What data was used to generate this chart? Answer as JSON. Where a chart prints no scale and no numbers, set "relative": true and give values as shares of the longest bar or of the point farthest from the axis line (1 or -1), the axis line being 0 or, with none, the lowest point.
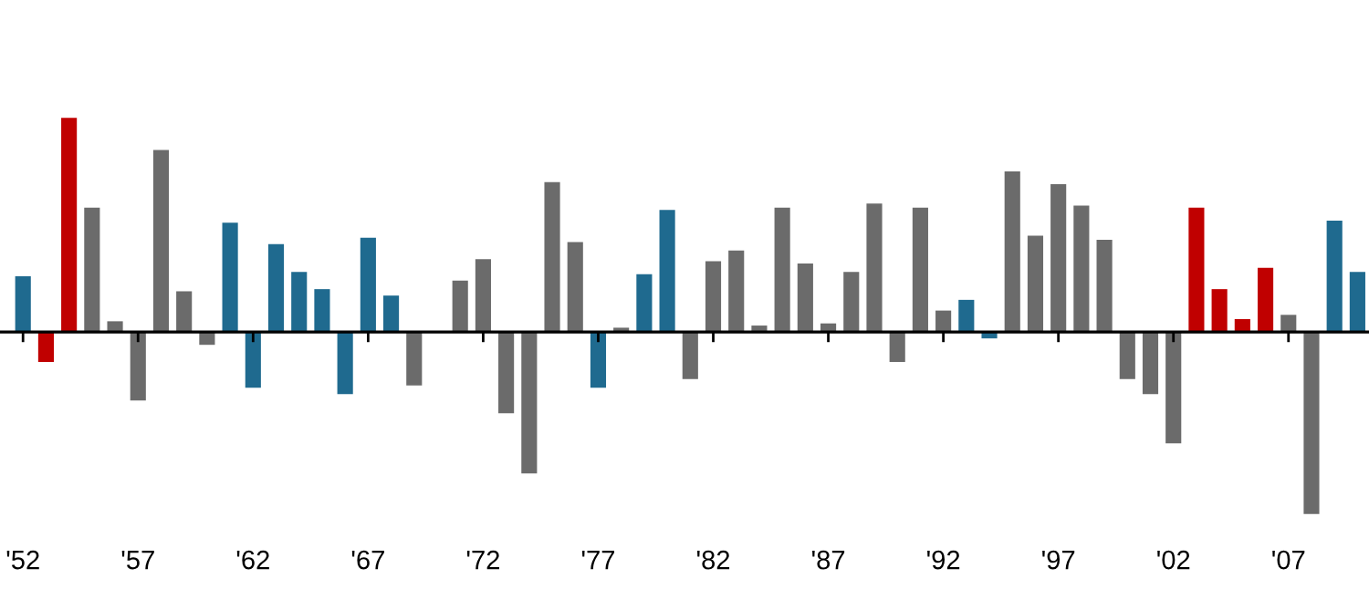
{
  "chart_data": {
    "type": "bar",
    "relative": true,
    "grid": false,
    "legend": false,
    "tick_labels": "x",
    "categories": [
      "'52",
      null,
      null,
      null,
      null,
      "'57",
      null,
      null,
      null,
      null,
      "'62",
      null,
      null,
      null,
      null,
      "'67",
      null,
      null,
      null,
      null,
      "'72",
      null,
      null,
      null,
      null,
      "'77",
      null,
      null,
      null,
      null,
      "'82",
      null,
      null,
      null,
      null,
      "'87",
      null,
      null,
      null,
      null,
      "'92",
      null,
      null,
      null,
      null,
      "'97",
      null,
      null,
      null,
      null,
      "'02",
      null,
      null,
      null,
      null,
      "'07",
      null,
      null,
      null
    ],
    "values": [
      0.26,
      -0.14,
      1.0,
      0.58,
      0.05,
      -0.32,
      0.85,
      0.19,
      -0.06,
      0.51,
      -0.26,
      0.41,
      0.28,
      0.2,
      -0.29,
      0.44,
      0.17,
      -0.25,
      0,
      0.24,
      0.34,
      -0.38,
      -0.66,
      0.7,
      0.42,
      -0.26,
      0.02,
      0.27,
      0.57,
      -0.22,
      0.33,
      0.38,
      0.03,
      0.58,
      0.32,
      0.04,
      0.28,
      0.6,
      -0.14,
      0.58,
      0.1,
      0.15,
      -0.03,
      0.75,
      0.45,
      0.69,
      0.59,
      0.43,
      -0.22,
      -0.29,
      -0.52,
      0.58,
      0.2,
      0.06,
      0.3,
      0.08,
      -0.85,
      0.52,
      0.28
    ],
    "colors": [
      "#1f6a8f",
      "#c00000",
      "#c00000",
      "#6b6b6b",
      "#6b6b6b",
      "#6b6b6b",
      "#6b6b6b",
      "#6b6b6b",
      "#6b6b6b",
      "#1f6a8f",
      "#1f6a8f",
      "#1f6a8f",
      "#1f6a8f",
      "#1f6a8f",
      "#1f6a8f",
      "#1f6a8f",
      "#1f6a8f",
      "#6b6b6b",
      "#6b6b6b",
      "#6b6b6b",
      "#6b6b6b",
      "#6b6b6b",
      "#6b6b6b",
      "#6b6b6b",
      "#6b6b6b",
      "#1f6a8f",
      "#6b6b6b",
      "#1f6a8f",
      "#1f6a8f",
      "#6b6b6b",
      "#6b6b6b",
      "#6b6b6b",
      "#6b6b6b",
      "#6b6b6b",
      "#6b6b6b",
      "#6b6b6b",
      "#6b6b6b",
      "#6b6b6b",
      "#6b6b6b",
      "#6b6b6b",
      "#6b6b6b",
      "#1f6a8f",
      "#1f6a8f",
      "#6b6b6b",
      "#6b6b6b",
      "#6b6b6b",
      "#6b6b6b",
      "#6b6b6b",
      "#6b6b6b",
      "#6b6b6b",
      "#6b6b6b",
      "#c00000",
      "#c00000",
      "#c00000",
      "#c00000",
      "#6b6b6b",
      "#6b6b6b",
      "#1f6a8f",
      "#1f6a8f"
    ]
  }
}
